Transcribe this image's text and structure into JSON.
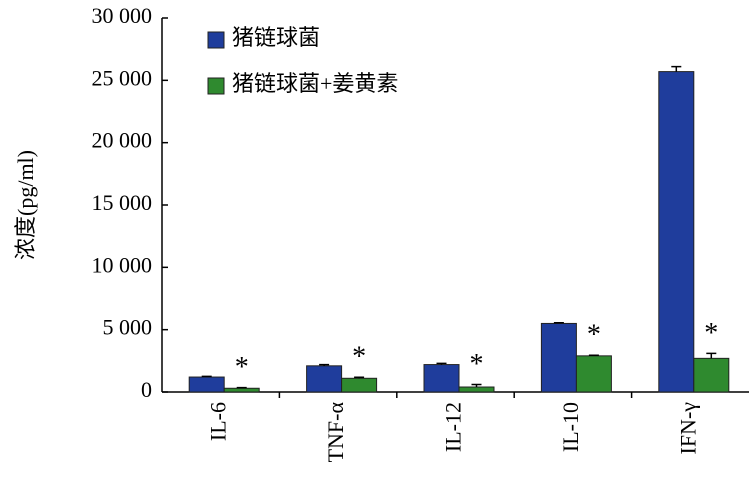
{
  "chart_data": {
    "type": "bar",
    "y_label": "浓度(pg/ml)",
    "categories": [
      "IL-6",
      "TNF-α",
      "IL-12",
      "IL-10",
      "IFN-γ"
    ],
    "series": [
      {
        "name": "猪链球菌",
        "color": "#1f3d9c",
        "values": [
          1200,
          2100,
          2200,
          5500,
          25700
        ],
        "errors": [
          50,
          100,
          100,
          50,
          400
        ]
      },
      {
        "name": "猪链球菌+姜黄素",
        "color": "#2f8a2f",
        "values": [
          300,
          1100,
          400,
          2900,
          2700
        ],
        "errors": [
          50,
          80,
          200,
          50,
          400
        ]
      }
    ],
    "significance": [
      "*",
      "*",
      "*",
      "*",
      "*"
    ],
    "ylim": [
      0,
      30000
    ],
    "yticks": [
      0,
      {
        "value": 5000,
        "label": "5 000"
      },
      {
        "value": 10000,
        "label": "10 000"
      },
      {
        "value": 15000,
        "label": "15 000"
      },
      {
        "value": 20000,
        "label": "20 000"
      },
      {
        "value": 25000,
        "label": "25 000"
      },
      {
        "value": 30000,
        "label": "30 000"
      }
    ],
    "grid": false,
    "legend": "top-left"
  }
}
